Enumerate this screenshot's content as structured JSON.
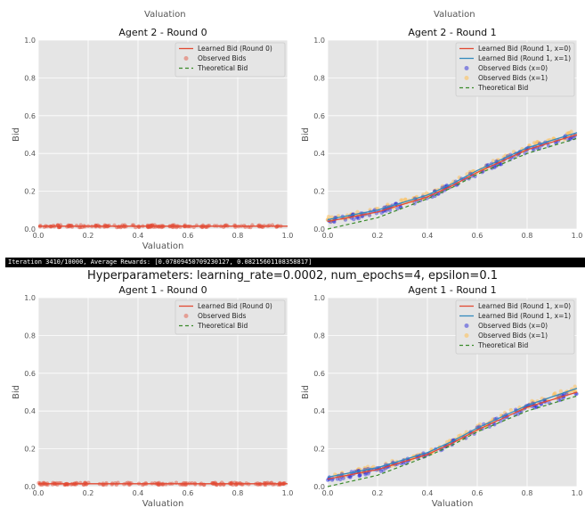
{
  "top_labels": [
    "Valuation",
    "Valuation"
  ],
  "banner_text": "Iteration 3410/10000, Average Rewards: [0.07809450709230127, 0.08215601108358817]",
  "suptitle": "Hyperparameters: learning_rate=0.0002, num_epochs=4, epsilon=0.1",
  "colors": {
    "learned": "#e24a33",
    "learned_x1": "#348abd",
    "observed": "#e24a33",
    "obs_x0": "#2b2bd8",
    "obs_x1": "#fbc15e",
    "theoretical": "#3a8a2a",
    "panel_bg": "#e5e5e5"
  },
  "chart_data": [
    {
      "title": "Agent 2 - Round 0",
      "type": "line",
      "xlabel": "Valuation",
      "ylabel": "Bid",
      "xlim": [
        0,
        1
      ],
      "ylim": [
        0,
        1
      ],
      "xticks": [
        "0.0",
        "0.2",
        "0.4",
        "0.6",
        "0.8",
        "1.0"
      ],
      "yticks": [
        "0.0",
        "0.2",
        "0.4",
        "0.6",
        "0.8",
        "1.0"
      ],
      "legend": [
        "Learned Bid (Round 0)",
        "Observed Bids",
        "Theoretical Bid"
      ],
      "mode": "round0",
      "level": 0.015
    },
    {
      "title": "Agent 2 - Round 1",
      "type": "line",
      "xlabel": "",
      "ylabel": "Bid",
      "xlim": [
        0,
        1
      ],
      "ylim": [
        0,
        1
      ],
      "xticks": [
        "0.0",
        "0.2",
        "0.4",
        "0.6",
        "0.8",
        "1.0"
      ],
      "yticks": [
        "0.0",
        "0.2",
        "0.4",
        "0.6",
        "0.8",
        "1.0"
      ],
      "legend": [
        "Learned Bid (Round 1, x=0)",
        "Learned Bid (Round 1, x=1)",
        "Observed Bids (x=0)",
        "Observed Bids (x=1)",
        "Theoretical Bid"
      ],
      "mode": "round1",
      "x": [
        0.0,
        0.2,
        0.4,
        0.5,
        0.6,
        0.8,
        1.0
      ],
      "learned_x0": [
        0.04,
        0.09,
        0.17,
        0.23,
        0.3,
        0.42,
        0.5
      ],
      "learned_x1": [
        0.05,
        0.1,
        0.18,
        0.24,
        0.31,
        0.43,
        0.51
      ],
      "theoretical": [
        0.0,
        0.06,
        0.16,
        0.22,
        0.29,
        0.4,
        0.48
      ]
    },
    {
      "title": "Agent 1 - Round 0",
      "type": "line",
      "xlabel": "Valuation",
      "ylabel": "Bid",
      "xlim": [
        0,
        1
      ],
      "ylim": [
        0,
        1
      ],
      "xticks": [
        "0.0",
        "0.2",
        "0.4",
        "0.6",
        "0.8",
        "1.0"
      ],
      "yticks": [
        "0.0",
        "0.2",
        "0.4",
        "0.6",
        "0.8",
        "1.0"
      ],
      "legend": [
        "Learned Bid (Round 0)",
        "Observed Bids",
        "Theoretical Bid"
      ],
      "mode": "round0",
      "level": 0.015
    },
    {
      "title": "Agent 1 - Round 1",
      "type": "line",
      "xlabel": "Valuation",
      "ylabel": "Bid",
      "xlim": [
        0,
        1
      ],
      "ylim": [
        0,
        1
      ],
      "xticks": [
        "0.0",
        "0.2",
        "0.4",
        "0.6",
        "0.8",
        "1.0"
      ],
      "yticks": [
        "0.0",
        "0.2",
        "0.4",
        "0.6",
        "0.8",
        "1.0"
      ],
      "legend": [
        "Learned Bid (Round 1, x=0)",
        "Learned Bid (Round 1, x=1)",
        "Observed Bids (x=0)",
        "Observed Bids (x=1)",
        "Theoretical Bid"
      ],
      "mode": "round1",
      "x": [
        0.0,
        0.2,
        0.4,
        0.5,
        0.6,
        0.8,
        1.0
      ],
      "learned_x0": [
        0.04,
        0.09,
        0.17,
        0.23,
        0.3,
        0.42,
        0.5
      ],
      "learned_x1": [
        0.05,
        0.1,
        0.18,
        0.24,
        0.31,
        0.43,
        0.52
      ],
      "theoretical": [
        0.0,
        0.06,
        0.16,
        0.22,
        0.29,
        0.4,
        0.48
      ]
    }
  ]
}
